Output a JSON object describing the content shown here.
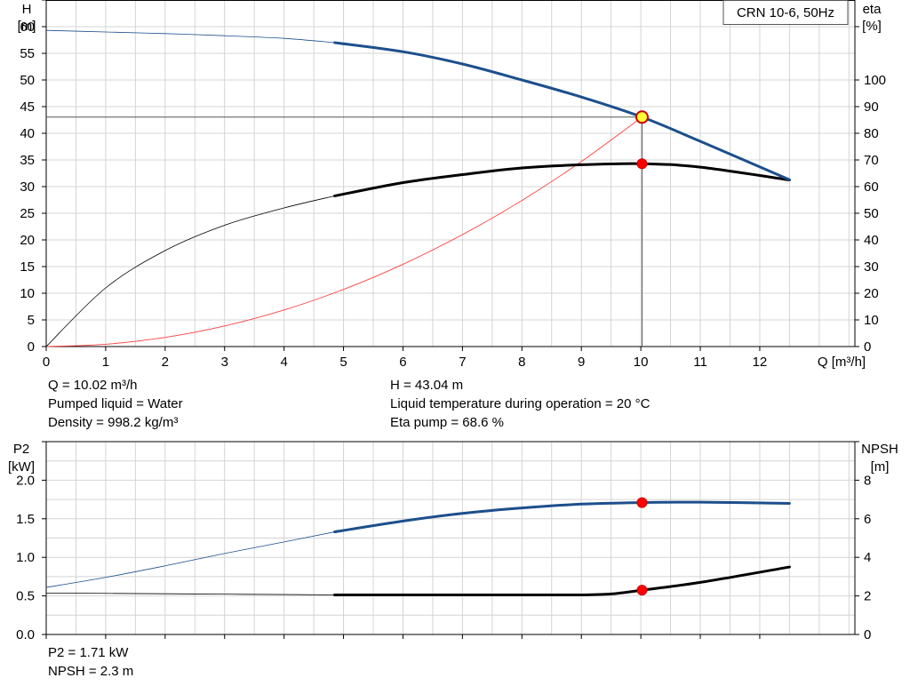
{
  "chart_data": [
    {
      "type": "line",
      "model_label": "CRN 10-6, 50Hz",
      "xlabel": "Q [m³/h]",
      "ylabel_left": "H",
      "ylabel_left_unit": "[m]",
      "ylabel_right": "eta",
      "ylabel_right_unit": "[%]",
      "xlim": [
        0,
        13.6
      ],
      "ylim_left": [
        0,
        65
      ],
      "ylim_right": [
        0,
        130
      ],
      "x_ticks": [
        0,
        1,
        2,
        3,
        4,
        5,
        6,
        7,
        8,
        9,
        10,
        11,
        12
      ],
      "y_left_ticks": [
        0,
        5,
        10,
        15,
        20,
        25,
        30,
        35,
        40,
        45,
        50,
        55,
        60
      ],
      "y_right_ticks": [
        0,
        10,
        20,
        30,
        40,
        50,
        60,
        70,
        80,
        90,
        100
      ],
      "grid": true,
      "series": [
        {
          "axis": "left",
          "color": "#1c4f8c",
          "x": [
            0,
            1,
            2,
            3,
            4,
            4.85,
            6,
            7,
            8,
            9,
            10.02,
            11,
            12.5
          ],
          "y": [
            59.3,
            59.0,
            58.7,
            58.3,
            57.8,
            57.0,
            55.3,
            53.0,
            50.0,
            46.8,
            43.04,
            38.5,
            31.3
          ]
        },
        {
          "axis": "right",
          "color": "#000000",
          "x": [
            0,
            1,
            2,
            3,
            4,
            4.85,
            6,
            7,
            8,
            9,
            10.02,
            11,
            12.5
          ],
          "y": [
            0,
            22,
            36,
            45.5,
            52,
            56.5,
            61.5,
            64.5,
            67,
            68.2,
            68.6,
            67.3,
            62.5
          ]
        },
        {
          "axis": "left",
          "color": "#ff4040",
          "x": [
            0,
            1,
            2,
            3,
            4,
            5,
            6,
            7,
            8,
            9,
            10.02
          ],
          "y": [
            0,
            0.43,
            1.72,
            3.86,
            6.86,
            10.72,
            15.43,
            21.0,
            27.4,
            34.7,
            43.04
          ]
        }
      ],
      "operating_point": {
        "Q": 10.02,
        "H": 43.04,
        "eta": 68.6
      }
    },
    {
      "type": "line",
      "xlabel": "",
      "ylabel_left": "P2",
      "ylabel_left_unit": "[kW]",
      "ylabel_right": "NPSH",
      "ylabel_right_unit": "[m]",
      "xlim": [
        0,
        13.6
      ],
      "ylim_left": [
        0,
        2.5
      ],
      "ylim_right": [
        0,
        10
      ],
      "y_left_ticks": [
        0.0,
        0.5,
        1.0,
        1.5,
        2.0
      ],
      "y_left_tick_labels": [
        "0.0",
        "0.5",
        "1.0",
        "1.5",
        "2.0"
      ],
      "y_right_ticks": [
        0,
        2,
        4,
        6,
        8
      ],
      "grid": true,
      "series": [
        {
          "axis": "left",
          "color": "#1c4f8c",
          "x": [
            0,
            1,
            2,
            3,
            4,
            4.85,
            6,
            7,
            8,
            9,
            10.02,
            11,
            12.5
          ],
          "y": [
            0.61,
            0.74,
            0.89,
            1.05,
            1.2,
            1.33,
            1.47,
            1.57,
            1.64,
            1.69,
            1.71,
            1.715,
            1.7
          ]
        },
        {
          "axis": "right",
          "color": "#000000",
          "x": [
            0,
            1,
            2,
            3,
            4,
            4.85,
            6,
            7,
            8,
            9,
            9.5,
            10.02,
            11,
            12.5
          ],
          "y": [
            2.15,
            2.13,
            2.11,
            2.09,
            2.07,
            2.05,
            2.05,
            2.05,
            2.05,
            2.05,
            2.1,
            2.3,
            2.7,
            3.5
          ]
        }
      ],
      "operating_point": {
        "Q": 10.02,
        "P2": 1.71,
        "NPSH": 2.3
      }
    }
  ],
  "info_top": {
    "q": "Q = 10.02 m³/h",
    "liquid": "Pumped liquid = Water",
    "density": "Density = 998.2 kg/m³",
    "h": "H = 43.04 m",
    "temp": "Liquid temperature during operation = 20 °C",
    "eta": "Eta pump = 68.6 %"
  },
  "info_bottom": {
    "p2": "P2 = 1.71 kW",
    "npsh": "NPSH = 2.3 m"
  }
}
